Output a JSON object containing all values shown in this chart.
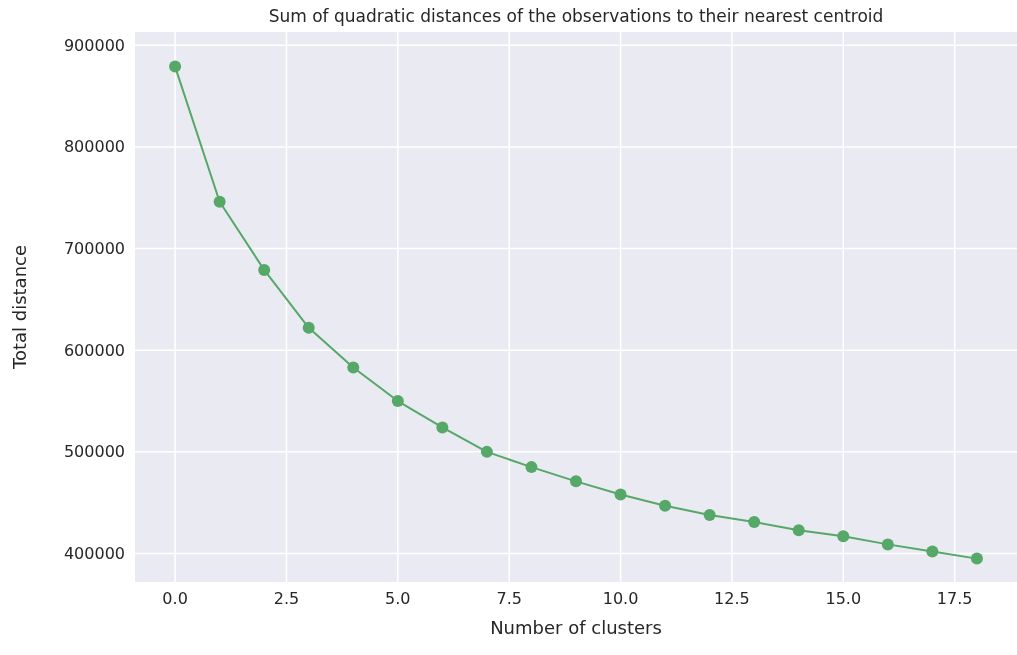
{
  "chart_data": {
    "type": "line",
    "title": "Sum of quadratic distances of the observations to their nearest centroid",
    "xlabel": "Number of clusters",
    "ylabel": "Total distance",
    "x": [
      0,
      1,
      2,
      3,
      4,
      5,
      6,
      7,
      8,
      9,
      10,
      11,
      12,
      13,
      14,
      15,
      16,
      17,
      18
    ],
    "series": [
      {
        "color": "#55a868",
        "values": [
          879000,
          746000,
          679000,
          622000,
          583000,
          550000,
          524000,
          500000,
          485000,
          471000,
          458000,
          447000,
          438000,
          431000,
          423000,
          417000,
          409000,
          402000,
          395000
        ]
      }
    ],
    "xlim": [
      -0.9,
      18.9
    ],
    "ylim": [
      372000,
      913000
    ],
    "xticks": [
      {
        "value": 0,
        "label": "0.0"
      },
      {
        "value": 2.5,
        "label": "2.5"
      },
      {
        "value": 5,
        "label": "5.0"
      },
      {
        "value": 7.5,
        "label": "7.5"
      },
      {
        "value": 10,
        "label": "10.0"
      },
      {
        "value": 12.5,
        "label": "12.5"
      },
      {
        "value": 15,
        "label": "15.0"
      },
      {
        "value": 17.5,
        "label": "17.5"
      }
    ],
    "yticks": [
      400000,
      500000,
      600000,
      700000,
      800000,
      900000
    ],
    "grid": true,
    "marker": "circle",
    "line_style": "solid"
  }
}
